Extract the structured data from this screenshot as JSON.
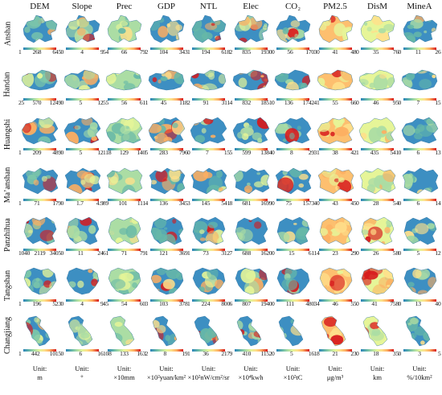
{
  "columns": [
    "DEM",
    "Slope",
    "Prec",
    "GDP",
    "NTL",
    "Elec",
    "CO₂",
    "PM2.5",
    "DisM",
    "MineA"
  ],
  "rows": [
    {
      "name": "Anshan",
      "ticks": [
        [
          "1",
          "268",
          "645"
        ],
        [
          "0",
          "4",
          "9"
        ],
        [
          "54",
          "66",
          "79"
        ],
        [
          "2",
          "104",
          "343"
        ],
        [
          "1",
          "194",
          "618"
        ],
        [
          "2",
          "835",
          "1930"
        ],
        [
          "0",
          "56",
          "170"
        ],
        [
          "30",
          "41",
          "48"
        ],
        [
          "0",
          "35",
          "76"
        ],
        [
          "0",
          "11",
          "26"
        ]
      ]
    },
    {
      "name": "Handan",
      "ticks": [
        [
          "25",
          "570",
          "1249"
        ],
        [
          "0",
          "5",
          "12"
        ],
        [
          "55",
          "56",
          "61"
        ],
        [
          "1",
          "45",
          "118"
        ],
        [
          "2",
          "91",
          "311"
        ],
        [
          "4",
          "832",
          "1851"
        ],
        [
          "0",
          "136",
          "1742"
        ],
        [
          "41",
          "55",
          "66"
        ],
        [
          "0",
          "46",
          "95"
        ],
        [
          "0",
          "7",
          "15"
        ]
      ]
    },
    {
      "name": "Huangshi",
      "ticks": [
        [
          "1",
          "209",
          "489"
        ],
        [
          "0",
          "5",
          "12"
        ],
        [
          "118",
          "129",
          "140"
        ],
        [
          "5",
          "283",
          "796"
        ],
        [
          "0",
          "7",
          "15"
        ],
        [
          "5",
          "599",
          "1384"
        ],
        [
          "0",
          "8",
          "29"
        ],
        [
          "31",
          "38",
          "42"
        ],
        [
          "1",
          "435",
          "541"
        ],
        [
          "0",
          "6",
          "13"
        ]
      ]
    },
    {
      "name": "Ma’anshan",
      "ticks": [
        [
          "1",
          "71",
          "179"
        ],
        [
          "0",
          "1.7",
          "4.9"
        ],
        [
          "89",
          "101",
          "111"
        ],
        [
          "4",
          "136",
          "345"
        ],
        [
          "3",
          "145",
          "541"
        ],
        [
          "8",
          "681",
          "1699"
        ],
        [
          "0",
          "75",
          "1573"
        ],
        [
          "40",
          "43",
          "45"
        ],
        [
          "0",
          "28",
          "54"
        ],
        [
          "0",
          "6",
          "14"
        ]
      ]
    },
    {
      "name": "Panzhihua",
      "ticks": [
        [
          "1040",
          "2119",
          "3405"
        ],
        [
          "0",
          "11",
          "24"
        ],
        [
          "61",
          "71",
          "79"
        ],
        [
          "1",
          "121",
          "369"
        ],
        [
          "1",
          "73",
          "312"
        ],
        [
          "7",
          "688",
          "1620"
        ],
        [
          "0",
          "15",
          "61"
        ],
        [
          "14",
          "23",
          "29"
        ],
        [
          "0",
          "26",
          "58"
        ],
        [
          "0",
          "5",
          "12"
        ]
      ]
    },
    {
      "name": "Tangshan",
      "ticks": [
        [
          "1",
          "196",
          "523"
        ],
        [
          "0",
          "4",
          "9"
        ],
        [
          "45",
          "54",
          "60"
        ],
        [
          "3",
          "103",
          "378"
        ],
        [
          "1",
          "224",
          "800"
        ],
        [
          "6",
          "807",
          "1940"
        ],
        [
          "0",
          "111",
          "480"
        ],
        [
          "34",
          "46",
          "55"
        ],
        [
          "0",
          "41",
          "758"
        ],
        [
          "0",
          "13",
          "40"
        ]
      ]
    },
    {
      "name": "Changjiang",
      "ticks": [
        [
          "1",
          "442",
          "1015"
        ],
        [
          "0",
          "6",
          "16"
        ],
        [
          "108",
          "133",
          "163"
        ],
        [
          "2",
          "8",
          "19"
        ],
        [
          "1",
          "36",
          "217"
        ],
        [
          "9",
          "410",
          "1152"
        ],
        [
          "0",
          "5",
          "16"
        ],
        [
          "18",
          "21",
          "23"
        ],
        [
          "0",
          "18",
          "35"
        ],
        [
          "0",
          "3",
          "5"
        ]
      ]
    }
  ],
  "units": [
    {
      "label": "Unit:",
      "value": "m"
    },
    {
      "label": "Unit:",
      "value": "°"
    },
    {
      "label": "Unit:",
      "value": "×10mm"
    },
    {
      "label": "Unit:",
      "value": "×10²yuan/km²"
    },
    {
      "label": "Unit:",
      "value": "×10²nW/cm²/sr"
    },
    {
      "label": "Unit:",
      "value": "×10⁴kwh"
    },
    {
      "label": "Unit:",
      "value": "×10²tC"
    },
    {
      "label": "Unit:",
      "value": "μg/m³"
    },
    {
      "label": "Unit:",
      "value": "km"
    },
    {
      "label": "Unit:",
      "value": "%/10km²"
    }
  ],
  "colors": {
    "legend_ramp": [
      "#2b83ba",
      "#66b8a8",
      "#abdda4",
      "#e6f598",
      "#fee08b",
      "#fdae61",
      "#d7191c"
    ],
    "map_base": "#3d8fc2"
  }
}
